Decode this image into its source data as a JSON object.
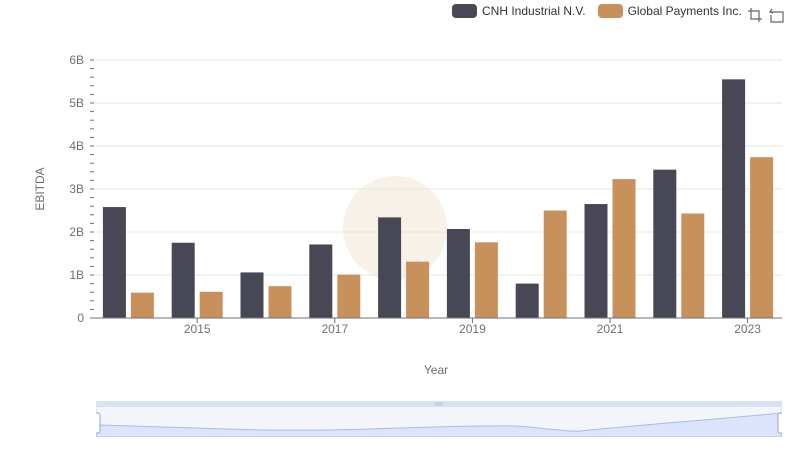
{
  "legend": {
    "items": [
      {
        "label": "CNH Industrial N.V.",
        "color": "#484755"
      },
      {
        "label": "Global Payments Inc.",
        "color": "#c8915c"
      }
    ]
  },
  "toolbox": {
    "icons": [
      "zoom-select-icon",
      "zoom-reset-icon"
    ]
  },
  "chart_data": {
    "type": "bar",
    "categories": [
      "2014",
      "2015",
      "2016",
      "2017",
      "2018",
      "2019",
      "2020",
      "2021",
      "2022",
      "2023"
    ],
    "x_tick_labels": [
      "2015",
      "2017",
      "2019",
      "2021",
      "2023"
    ],
    "xlabel": "Year",
    "ylabel": "EBITDA",
    "ylim": [
      0,
      6000000000
    ],
    "y_ticks": [
      {
        "value": 0,
        "label": "0"
      },
      {
        "value": 1000000000,
        "label": "1B"
      },
      {
        "value": 2000000000,
        "label": "2B"
      },
      {
        "value": 3000000000,
        "label": "3B"
      },
      {
        "value": 4000000000,
        "label": "4B"
      },
      {
        "value": 5000000000,
        "label": "5B"
      },
      {
        "value": 6000000000,
        "label": "6B"
      }
    ],
    "grid": true,
    "legend_position": "top-right",
    "series": [
      {
        "name": "CNH Industrial N.V.",
        "color": "#484755",
        "values": [
          2580000000,
          1750000000,
          1060000000,
          1710000000,
          2340000000,
          2070000000,
          800000000,
          2650000000,
          3450000000,
          5550000000
        ]
      },
      {
        "name": "Global Payments Inc.",
        "color": "#c8915c",
        "values": [
          590000000,
          610000000,
          740000000,
          1010000000,
          1310000000,
          1760000000,
          2500000000,
          3230000000,
          2430000000,
          3740000000
        ]
      }
    ]
  },
  "zoom_slider": {
    "range": [
      0,
      100
    ]
  }
}
